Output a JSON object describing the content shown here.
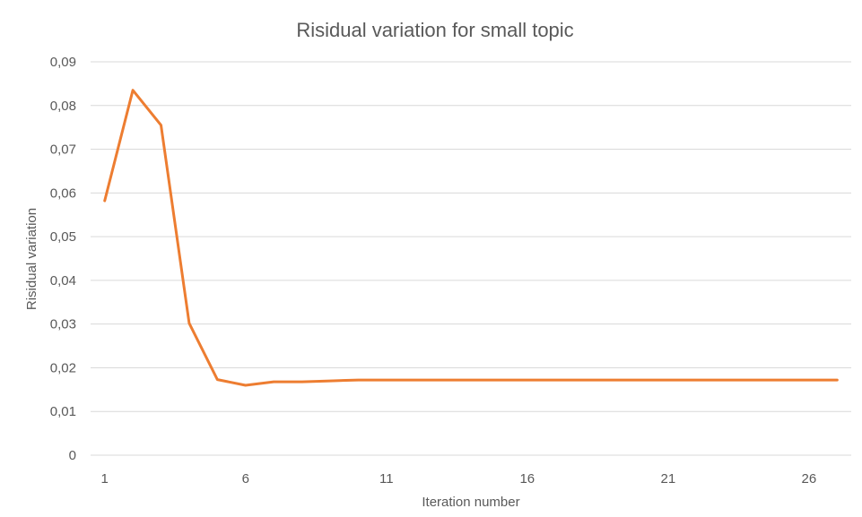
{
  "chart_data": {
    "type": "line",
    "title": "Risidual variation  for small topic",
    "xlabel": "Iteration number",
    "ylabel": "Risidual variation",
    "x": [
      1,
      2,
      3,
      4,
      5,
      6,
      7,
      8,
      9,
      10,
      11,
      12,
      13,
      14,
      15,
      16,
      17,
      18,
      19,
      20,
      21,
      22,
      23,
      24,
      25,
      26,
      27
    ],
    "x_tick_labels": [
      "1",
      "6",
      "11",
      "16",
      "21",
      "26"
    ],
    "x_tick_values": [
      1,
      6,
      11,
      16,
      21,
      26
    ],
    "ylim": [
      0,
      0.09
    ],
    "y_ticks": [
      0,
      0.01,
      0.02,
      0.03,
      0.04,
      0.05,
      0.06,
      0.07,
      0.08,
      0.09
    ],
    "y_tick_labels": [
      "0",
      "0,01",
      "0,02",
      "0,03",
      "0,04",
      "0,05",
      "0,06",
      "0,07",
      "0,08",
      "0,09"
    ],
    "grid": true,
    "legend": "none",
    "series": [
      {
        "color": "#ED7D31",
        "values": [
          0.0582,
          0.0835,
          0.0755,
          0.0302,
          0.0173,
          0.016,
          0.0168,
          0.0168,
          0.017,
          0.0172,
          0.0172,
          0.0172,
          0.0172,
          0.0172,
          0.0172,
          0.0172,
          0.0172,
          0.0172,
          0.0172,
          0.0172,
          0.0172,
          0.0172,
          0.0172,
          0.0172,
          0.0172,
          0.0172,
          0.0172
        ]
      }
    ]
  }
}
